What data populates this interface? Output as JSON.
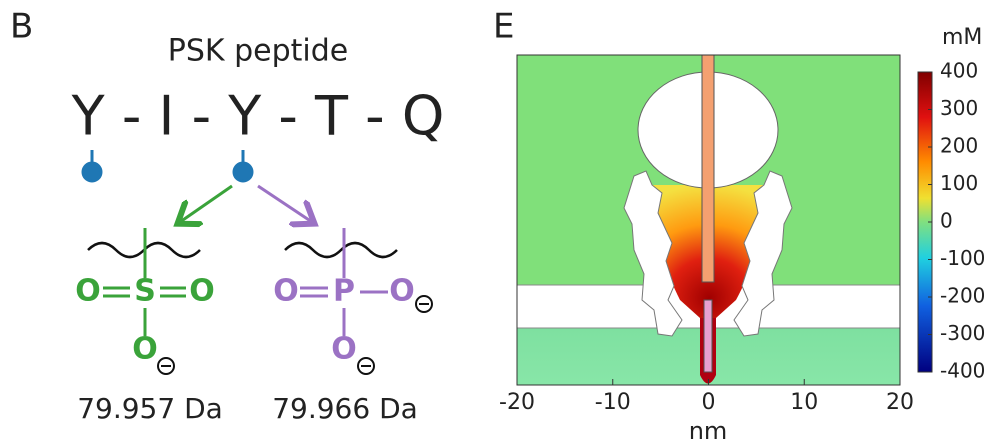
{
  "panel_b": {
    "label": "B",
    "title": "PSK peptide",
    "sequence": "Y - I - Y - T - Q",
    "sulfate": {
      "atoms": [
        "O",
        "S",
        "O",
        "O"
      ],
      "mass": "79.957 Da"
    },
    "phosphate": {
      "atoms": [
        "O",
        "P",
        "O",
        "O"
      ],
      "mass": "79.966 Da"
    }
  },
  "panel_e": {
    "label": "E",
    "xlabel": "nm",
    "xlim": [
      -20,
      20
    ],
    "xticks": [
      -20,
      -10,
      0,
      10,
      20
    ],
    "colorbar": {
      "label": "mM",
      "lim": [
        -400,
        400
      ],
      "ticks": [
        400,
        300,
        200,
        100,
        0,
        -100,
        -200,
        -300,
        -400
      ]
    }
  }
}
